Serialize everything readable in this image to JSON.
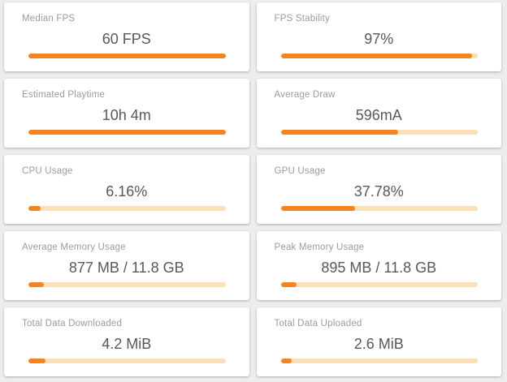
{
  "theme": {
    "page_background": "#ededed",
    "card_background": "#ffffff",
    "accent_orange": "#f5831f",
    "bar_track_color": "#fbdfb7",
    "title_color": "#9b9b9b",
    "value_color": "#57585a"
  },
  "cards": [
    {
      "title": "Median FPS",
      "value": "60 FPS",
      "progress": 100
    },
    {
      "title": "FPS Stability",
      "value": "97%",
      "progress": 97
    },
    {
      "title": "Estimated Playtime",
      "value": "10h 4m",
      "progress": 100
    },
    {
      "title": "Average Draw",
      "value": "596mA",
      "progress": 59.6
    },
    {
      "title": "CPU Usage",
      "value": "6.16%",
      "progress": 6.16
    },
    {
      "title": "GPU Usage",
      "value": "37.78%",
      "progress": 37.78
    },
    {
      "title": "Average Memory Usage",
      "value": "877 MB / 11.8 GB",
      "progress": 7.8
    },
    {
      "title": "Peak Memory Usage",
      "value": "895 MB / 11.8 GB",
      "progress": 7.9
    },
    {
      "title": "Total Data Downloaded",
      "value": "4.2 MiB",
      "progress": 8.6
    },
    {
      "title": "Total Data Uploaded",
      "value": "2.6 MiB",
      "progress": 5.5
    }
  ]
}
